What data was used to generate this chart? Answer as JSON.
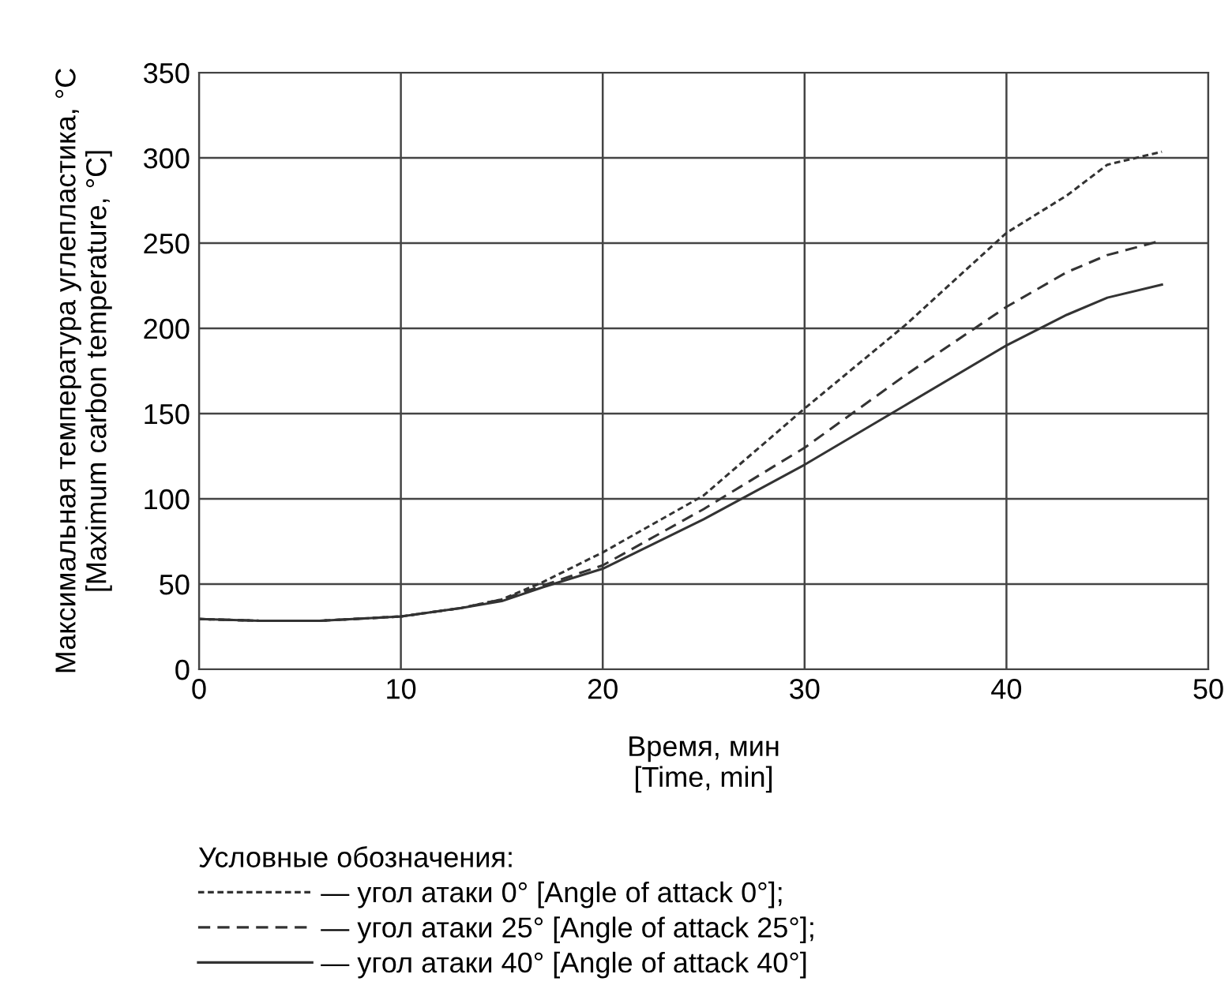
{
  "chart_data": {
    "type": "line",
    "xlabel": "Время, мин\n[Time, min]",
    "ylabel": "Максимальная температура углепластика, °C\n[Maximum carbon temperature, °C]",
    "legend_title": "Условные обозначения:",
    "legend": "bottom",
    "grid": true,
    "xlim": [
      0,
      50
    ],
    "xticks": [
      0,
      10,
      20,
      30,
      40,
      50
    ],
    "ylim": [
      0,
      350
    ],
    "yticks": [
      0,
      50,
      100,
      150,
      200,
      250,
      300,
      350
    ],
    "x": [
      0,
      3,
      6,
      10,
      13,
      15,
      17,
      20,
      25,
      30,
      35,
      40,
      43,
      45,
      47.7
    ],
    "series": [
      {
        "name": "— угол атаки 0° [Angle of attack 0°];",
        "color": "#333333",
        "line_style": "dotted",
        "values": [
          29.5,
          28.5,
          28.5,
          31,
          36,
          41,
          51,
          68.6,
          102,
          153,
          202,
          256,
          278,
          296,
          303.6
        ]
      },
      {
        "name": "— угол атаки 25° [Angle of attack 25°];",
        "color": "#333333",
        "line_style": "dashed",
        "values": [
          29.5,
          28.5,
          28.5,
          31,
          36,
          41,
          49,
          61,
          94,
          130,
          172.6,
          212.6,
          233,
          243,
          251.5
        ]
      },
      {
        "name": "— угол атаки 40° [Angle of attack 40°]",
        "color": "#333333",
        "line_style": "solid",
        "values": [
          29.5,
          28.5,
          28.5,
          31,
          36,
          40,
          48,
          59,
          88,
          120,
          155,
          190,
          208,
          218,
          225.6
        ]
      }
    ]
  }
}
